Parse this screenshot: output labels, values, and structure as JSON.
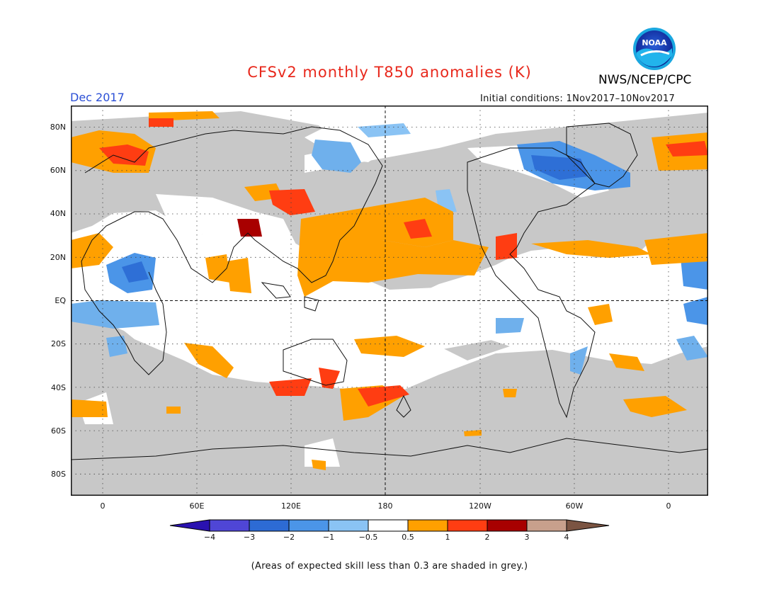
{
  "title": "CFSv2 monthly T850 anomalies (K)",
  "agency": "NWS/NCEP/CPC",
  "valid_month": "Dec 2017",
  "initial_conditions": "Initial conditions: 1Nov2017–10Nov2017",
  "logo": {
    "text": "NOAA",
    "icon": "noaa-logo"
  },
  "map": {
    "projection": "cylindrical equidistant, centered 180",
    "lat_labels": [
      "80N",
      "60N",
      "40N",
      "20N",
      "EQ",
      "20S",
      "40S",
      "60S",
      "80S"
    ],
    "lon_labels": [
      "0",
      "60E",
      "120E",
      "180",
      "120W",
      "60W",
      "0"
    ],
    "colors": {
      "grey_low_skill": "#c8c8c8",
      "light_blue": "#6fb0ec",
      "mid_blue": "#4a8fe3",
      "blue": "#2e6fd6",
      "orange": "#ffa000",
      "red_orange": "#ff3d12",
      "dark_red": "#a80000",
      "tan": "#c8a08c",
      "coast": "#111111"
    }
  },
  "colorbar": {
    "labels": [
      "−4",
      "−3",
      "−2",
      "−1",
      "−0.5",
      "0.5",
      "1",
      "2",
      "3",
      "4"
    ],
    "colors": [
      "#2a12b0",
      "#4f46d6",
      "#2d6bd4",
      "#4b95e8",
      "#8ac3f4",
      "#ffffff",
      "#ffa000",
      "#ff3d12",
      "#a80000",
      "#c8a08c",
      "#7b5442"
    ]
  },
  "footnote": "(Areas of expected skill less than 0.3 are shaded in grey.)"
}
